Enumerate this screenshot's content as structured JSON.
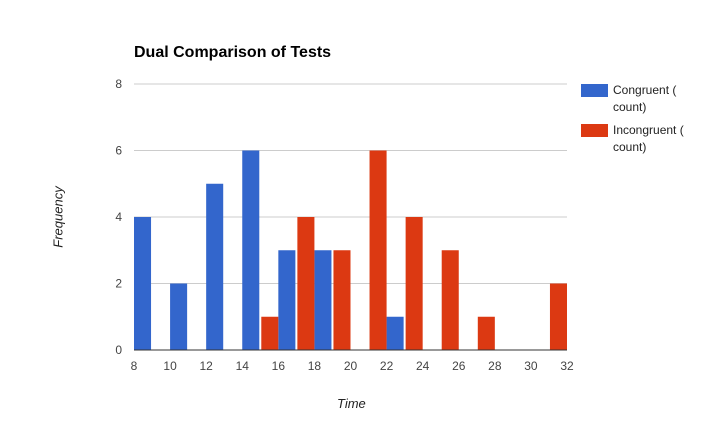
{
  "chart_data": {
    "type": "bar",
    "title": "Dual Comparison of Tests",
    "xlabel": "Time",
    "ylabel": "Frequency",
    "xlim": [
      8,
      32
    ],
    "ylim": [
      0,
      8
    ],
    "x_ticks": [
      "8",
      "10",
      "12",
      "14",
      "16",
      "18",
      "20",
      "22",
      "24",
      "26",
      "28",
      "30",
      "32"
    ],
    "y_ticks": [
      "0",
      "2",
      "4",
      "6",
      "8"
    ],
    "bin_width": 2,
    "bin_starts": [
      8,
      10,
      12,
      14,
      16,
      18,
      20,
      22,
      24,
      26,
      28,
      30
    ],
    "series": [
      {
        "name": "Congruent ( count)",
        "color": "#3366cc",
        "values": [
          4,
          2,
          5,
          6,
          3,
          3,
          0,
          1,
          0,
          0,
          0,
          0
        ]
      },
      {
        "name": "Incongruent ( count)",
        "color": "#dc3912",
        "values": [
          0,
          0,
          0,
          1,
          4,
          3,
          6,
          4,
          3,
          1,
          0,
          2
        ]
      }
    ],
    "grid": true,
    "legend_position": "right"
  }
}
